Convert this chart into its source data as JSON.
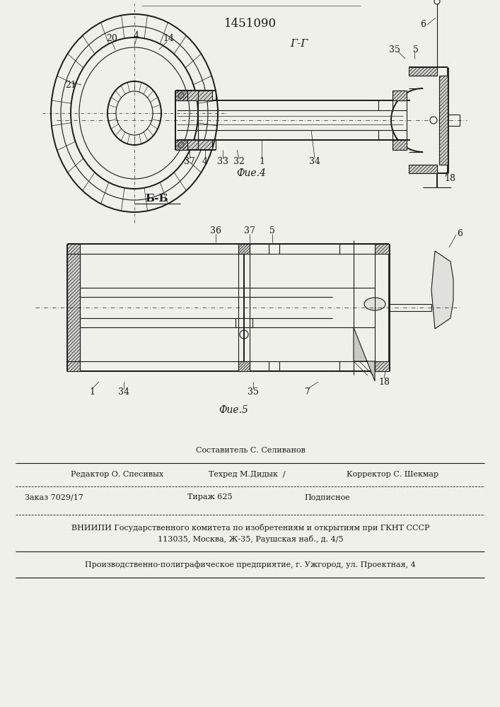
{
  "patent_number": "1451090",
  "fig4_label": "Фие.4",
  "fig5_label": "Фие.5",
  "section_gg": "Г-Г",
  "section_bb": "Б-Б",
  "footer_line1": "Составитель С. Селиванов",
  "footer_line2_left": "Редактор О. Спесивых",
  "footer_line2_mid": "Техред М.Дидык  /",
  "footer_line2_right": "Корректор С. Шекмар",
  "footer_line3_left": "Заказ 7029/17",
  "footer_line3_mid": "Тираж 625",
  "footer_line3_right": "Подписное",
  "footer_line4": "ВНИИПИ Государственного комитета по изобретениям и открытиям при ГКНТ СССР",
  "footer_line5": "113035, Москва, Ж-35, Раушская наб., д. 4/5",
  "footer_line6": "Производственно-полиграфическое предприятие, г. Ужгород, ул. Проектная, 4",
  "bg_color": "#f5f5f0",
  "line_color": "#1a1a1a"
}
